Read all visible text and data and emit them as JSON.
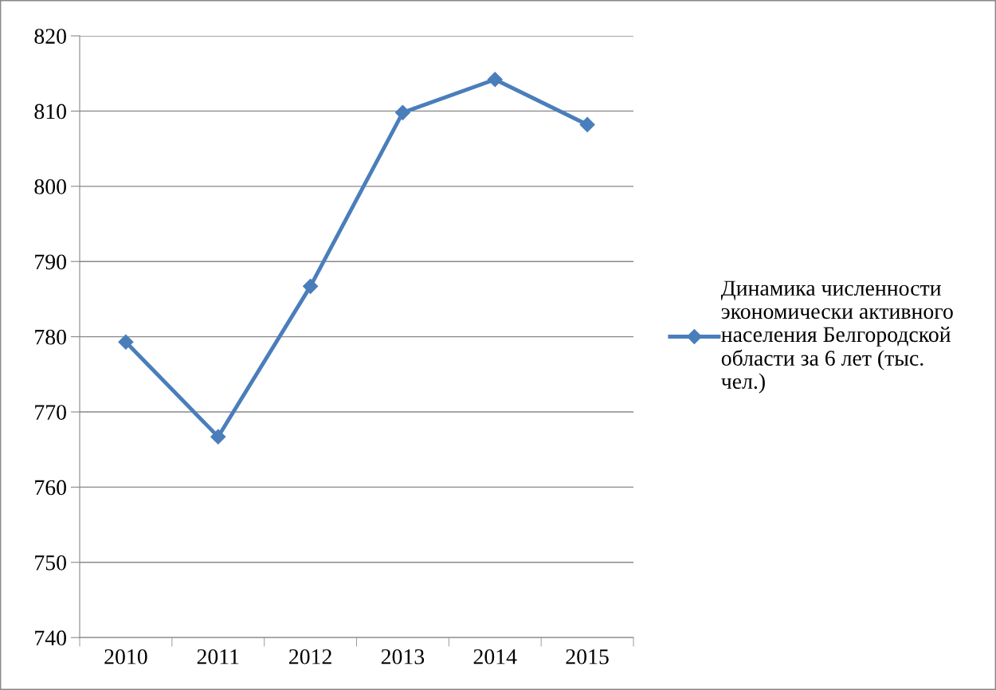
{
  "chart_data": {
    "type": "line",
    "categories": [
      "2010",
      "2011",
      "2012",
      "2013",
      "2014",
      "2015"
    ],
    "series": [
      {
        "name": "Динамика численности\nэкономически активного\nнаселения Белгородской\nобласти за 6 лет (тыс.\nчел.)",
        "color": "#4a7ebb",
        "values": [
          779.3,
          766.7,
          786.7,
          809.8,
          814.2,
          808.2
        ]
      }
    ],
    "ylim": [
      740,
      820
    ],
    "yticks": [
      740,
      750,
      760,
      770,
      780,
      790,
      800,
      810,
      820
    ],
    "grid": "y",
    "legend": "right",
    "marker": "diamond",
    "line_style": "solid"
  }
}
